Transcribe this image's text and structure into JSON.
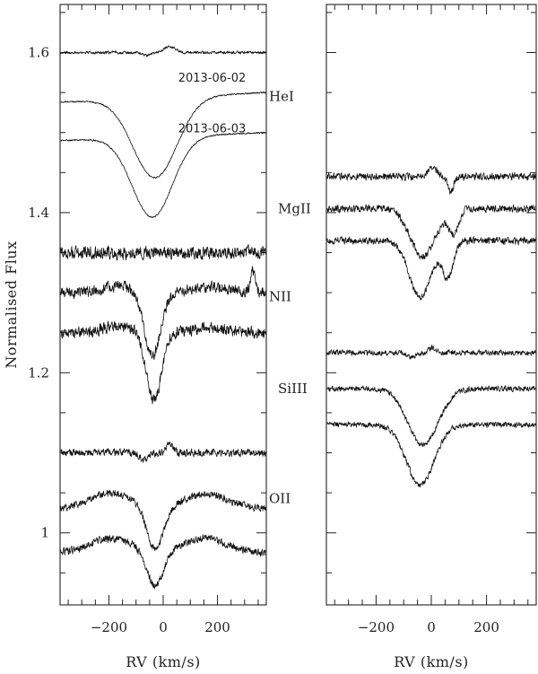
{
  "chart_data": [
    {
      "type": "line",
      "panel": "left",
      "xlabel": "RV (km/s)",
      "ylabel": "Normalised Flux",
      "xlim": [
        -380,
        380
      ],
      "ylim": [
        0.91,
        1.66
      ],
      "xticks": [
        -200,
        0,
        200
      ],
      "xtick_labels": [
        "−200",
        "0",
        "200"
      ],
      "yticks": [
        1.0,
        1.2,
        1.4,
        1.6
      ],
      "ytick_labels": [
        "1",
        "1.2",
        "1.4",
        "1.6"
      ],
      "annotations": [
        {
          "text": "2013-06-02",
          "rv": 180,
          "flux": 1.568
        },
        {
          "text": "2013-06-03",
          "rv": 180,
          "flux": 1.505
        }
      ],
      "line_groups": [
        {
          "label": "HeI",
          "label_flux": 1.545,
          "traces": [
            {
              "role": "difference",
              "continuum": 1.6,
              "noise": 0.0015,
              "features": [
                {
                  "rv": -60,
                  "depth": 0.004,
                  "sigma": 15
                },
                {
                  "rv": 25,
                  "depth": -0.007,
                  "sigma": 22
                }
              ]
            },
            {
              "date": "2013-06-02",
              "continuum": 1.55,
              "noise": 0.0008,
              "tilt": 0.012,
              "features": [
                {
                  "rv": -30,
                  "depth": 0.1,
                  "sigma": 60,
                  "wide": 0.0
                }
              ]
            },
            {
              "date": "2013-06-03",
              "continuum": 1.5,
              "noise": 0.0008,
              "tilt": 0.01,
              "features": [
                {
                  "rv": -40,
                  "depth": 0.1,
                  "sigma": 55
                }
              ]
            }
          ]
        },
        {
          "label": "NII",
          "label_flux": 1.295,
          "traces": [
            {
              "role": "difference",
              "continuum": 1.35,
              "noise": 0.007,
              "features": []
            },
            {
              "date": "2013-06-02",
              "continuum": 1.3,
              "noise": 0.006,
              "features": [
                {
                  "rv": -160,
                  "depth": -0.008,
                  "sigma": 60
                },
                {
                  "rv": -40,
                  "depth": 0.08,
                  "sigma": 30
                },
                {
                  "rv": 170,
                  "depth": -0.008,
                  "sigma": 60
                },
                {
                  "rv": 330,
                  "depth": -0.03,
                  "sigma": 8
                }
              ]
            },
            {
              "date": "2013-06-03",
              "continuum": 1.25,
              "noise": 0.006,
              "features": [
                {
                  "rv": -160,
                  "depth": -0.008,
                  "sigma": 60
                },
                {
                  "rv": -35,
                  "depth": 0.085,
                  "sigma": 28
                },
                {
                  "rv": 170,
                  "depth": -0.006,
                  "sigma": 60
                }
              ]
            }
          ]
        },
        {
          "label": "OII",
          "label_flux": 1.043,
          "traces": [
            {
              "role": "difference",
              "continuum": 1.1,
              "noise": 0.004,
              "features": [
                {
                  "rv": -70,
                  "depth": 0.008,
                  "sigma": 15
                },
                {
                  "rv": 25,
                  "depth": -0.012,
                  "sigma": 12
                }
              ]
            },
            {
              "date": "2013-06-02",
              "continuum": 1.03,
              "noise": 0.004,
              "features": [
                {
                  "rv": -190,
                  "depth": -0.02,
                  "sigma": 80
                },
                {
                  "rv": -30,
                  "depth": 0.055,
                  "sigma": 30
                },
                {
                  "rv": 160,
                  "depth": -0.018,
                  "sigma": 80
                }
              ]
            },
            {
              "date": "2013-06-03",
              "continuum": 0.975,
              "noise": 0.004,
              "features": [
                {
                  "rv": -190,
                  "depth": -0.018,
                  "sigma": 80
                },
                {
                  "rv": -30,
                  "depth": 0.045,
                  "sigma": 30
                },
                {
                  "rv": 150,
                  "depth": -0.018,
                  "sigma": 80
                }
              ]
            }
          ]
        }
      ]
    },
    {
      "type": "line",
      "panel": "right",
      "xlabel": "RV (km/s)",
      "xlim": [
        -380,
        380
      ],
      "ylim": [
        0.91,
        1.66
      ],
      "xticks": [
        -200,
        0,
        200
      ],
      "xtick_labels": [
        "−200",
        "0",
        "200"
      ],
      "yticks": [
        1.0,
        1.2,
        1.4,
        1.6
      ],
      "ytick_labels": [
        "",
        "",
        "",
        ""
      ],
      "line_groups": [
        {
          "label": "MgII",
          "label_flux": 1.405,
          "traces": [
            {
              "role": "difference",
              "continuum": 1.445,
              "noise": 0.004,
              "features": [
                {
                  "rv": 5,
                  "depth": -0.012,
                  "sigma": 15
                },
                {
                  "rv": 70,
                  "depth": 0.02,
                  "sigma": 10
                }
              ]
            },
            {
              "date": "2013-06-02",
              "continuum": 1.405,
              "noise": 0.004,
              "features": [
                {
                  "rv": -30,
                  "depth": 0.06,
                  "sigma": 45
                },
                {
                  "rv": 80,
                  "depth": 0.03,
                  "sigma": 18
                }
              ]
            },
            {
              "date": "2013-06-03",
              "continuum": 1.365,
              "noise": 0.004,
              "features": [
                {
                  "rv": -40,
                  "depth": 0.07,
                  "sigma": 40
                },
                {
                  "rv": 60,
                  "depth": 0.045,
                  "sigma": 20
                }
              ]
            }
          ]
        },
        {
          "label": "SiIII",
          "label_flux": 1.18,
          "traces": [
            {
              "role": "difference",
              "continuum": 1.225,
              "noise": 0.003,
              "features": [
                {
                  "rv": -70,
                  "depth": 0.006,
                  "sigma": 15
                },
                {
                  "rv": 5,
                  "depth": -0.007,
                  "sigma": 12
                }
              ]
            },
            {
              "date": "2013-06-02",
              "continuum": 1.18,
              "noise": 0.003,
              "features": [
                {
                  "rv": -30,
                  "depth": 0.07,
                  "sigma": 55
                }
              ]
            },
            {
              "date": "2013-06-03",
              "continuum": 1.135,
              "noise": 0.003,
              "features": [
                {
                  "rv": -40,
                  "depth": 0.075,
                  "sigma": 50
                }
              ]
            }
          ]
        }
      ]
    }
  ]
}
